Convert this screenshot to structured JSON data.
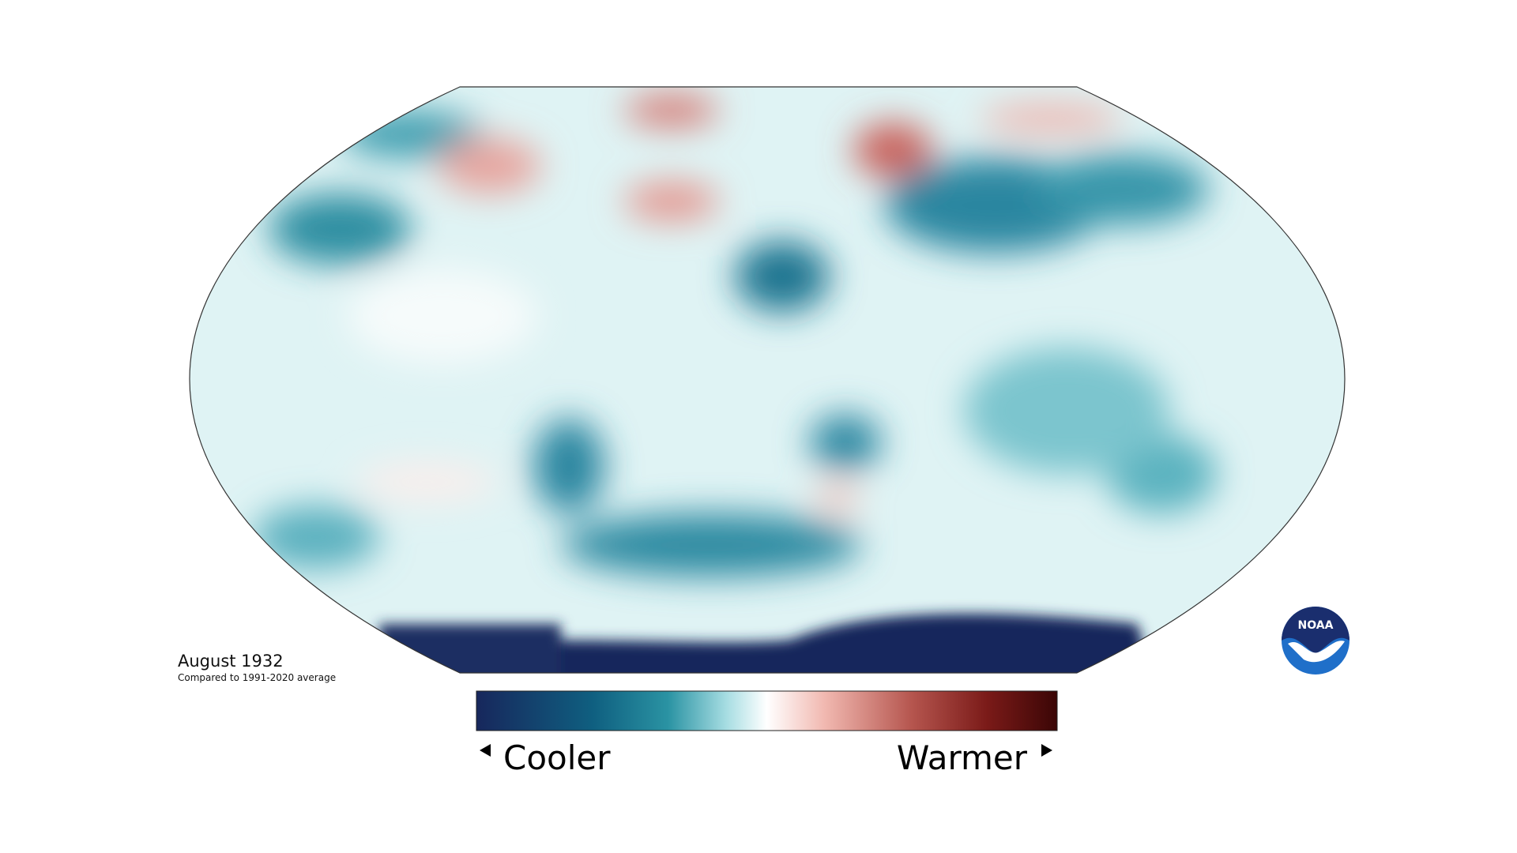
{
  "title": "August 1932",
  "subtitle": "Compared to 1991-2020 average",
  "legend": {
    "low": "Cooler",
    "high": "Warmer"
  },
  "logo": "NOAA"
}
